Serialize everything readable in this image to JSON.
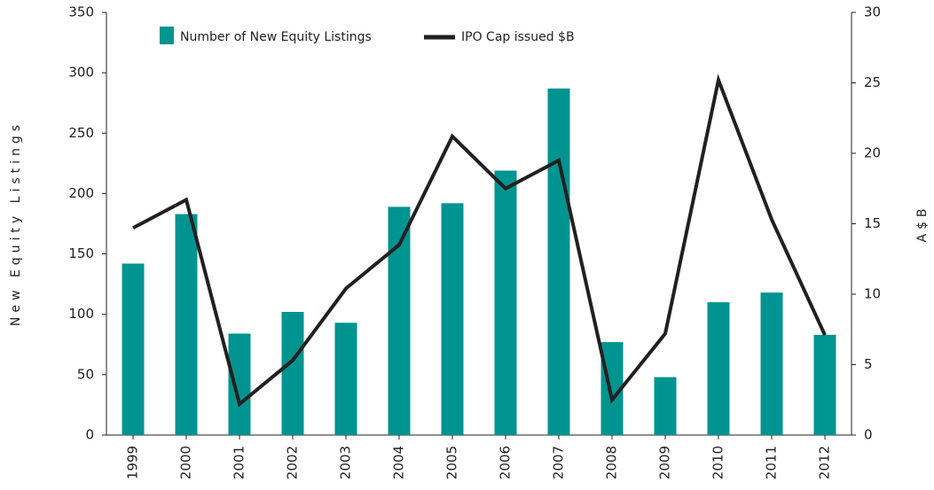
{
  "chart_data": {
    "type": "bar_line",
    "categories": [
      "1999",
      "2000",
      "2001",
      "2002",
      "2003",
      "2004",
      "2005",
      "2006",
      "2007",
      "2008",
      "2009",
      "2010",
      "2011",
      "2012"
    ],
    "series": [
      {
        "name": "Number of New Equity Listings",
        "color": "#009490",
        "type": "bar",
        "values": [
          142,
          183,
          84,
          102,
          93,
          189,
          192,
          219,
          287,
          77,
          48,
          110,
          118,
          83
        ]
      },
      {
        "name": "IPO Cap issued $B",
        "color": "#231f20",
        "type": "line",
        "axis": "y2",
        "values": [
          14.7,
          16.7,
          2.2,
          5.3,
          10.4,
          13.5,
          21.2,
          17.5,
          19.5,
          2.5,
          7.2,
          25.2,
          15.3,
          7.1
        ]
      }
    ],
    "y_label": "New Equity Listings",
    "y2_label": "A$B",
    "ylim": [
      0,
      350
    ],
    "yticks": [
      0,
      50,
      100,
      150,
      200,
      250,
      300,
      350
    ],
    "y2lim": [
      0,
      30
    ],
    "y2ticks": [
      0,
      5,
      10,
      15,
      20,
      25,
      30
    ]
  }
}
